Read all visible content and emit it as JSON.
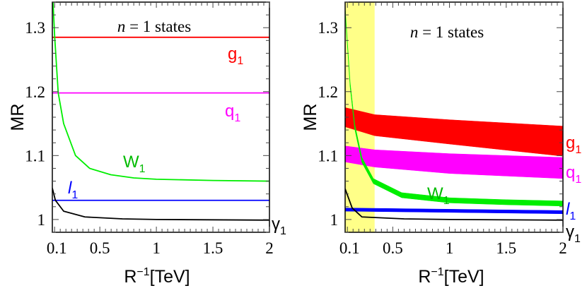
{
  "chart_data": [
    {
      "type": "line",
      "panel": "left",
      "annotation": {
        "italic": "n",
        "rest": " = 1 states"
      },
      "ylabel": "MR",
      "xlabel": {
        "main": "R",
        "sup": "−1",
        "rest": "[TeV]"
      },
      "xlim": [
        0.08,
        2
      ],
      "ylim": [
        0.98,
        1.34
      ],
      "xticks": [
        0.1,
        0.5,
        1,
        1.5,
        2
      ],
      "xtick_labels": [
        "0.1",
        "0.5",
        "1",
        "1.5",
        "2"
      ],
      "yticks": [
        1.0,
        1.1,
        1.2,
        1.3
      ],
      "ytick_labels": [
        "1",
        "1.1",
        "1.2",
        "1.3"
      ],
      "grid": false,
      "series": [
        {
          "name": "g1",
          "label": "g",
          "sub": "1",
          "color": "#ff0000",
          "x": [
            0.08,
            2
          ],
          "y": [
            1.285,
            1.285
          ]
        },
        {
          "name": "q1",
          "label": "q",
          "sub": "1",
          "color": "#ff00ff",
          "x": [
            0.08,
            2
          ],
          "y": [
            1.198,
            1.198
          ]
        },
        {
          "name": "W1",
          "label": "W",
          "sub": "1",
          "color": "#00ee00",
          "label_color": "#00bb00",
          "x": [
            0.086,
            0.101,
            0.132,
            0.18,
            0.285,
            0.41,
            0.597,
            0.8,
            1,
            1.5,
            2
          ],
          "y": [
            1.34,
            1.285,
            1.198,
            1.15,
            1.1,
            1.08,
            1.07,
            1.065,
            1.063,
            1.061,
            1.06
          ]
        },
        {
          "name": "l1",
          "label": "l",
          "sub": "1",
          "italic": true,
          "color": "#0000ff",
          "x": [
            0.08,
            2
          ],
          "y": [
            1.03,
            1.03
          ]
        },
        {
          "name": "γ1",
          "label": "γ",
          "sub": "1",
          "color": "#000000",
          "x": [
            0.08,
            0.107,
            0.18,
            0.368,
            0.7,
            1,
            2
          ],
          "y": [
            1.049,
            1.03,
            1.013,
            1.004,
            1.001,
            1.0,
            0.999
          ]
        }
      ]
    },
    {
      "type": "area",
      "panel": "right",
      "annotation": {
        "italic": "n",
        "rest": " = 1 states"
      },
      "ylabel": "MR",
      "xlabel": {
        "main": "R",
        "sup": "−1",
        "rest": "[TeV]"
      },
      "xlim": [
        0.08,
        2
      ],
      "ylim": [
        0.98,
        1.34
      ],
      "xticks": [
        0.1,
        0.5,
        1,
        1.5,
        2
      ],
      "xtick_labels": [
        "0.1",
        "0.5",
        "1",
        "1.5",
        "2"
      ],
      "yticks": [
        1.0,
        1.1,
        1.2,
        1.3
      ],
      "ytick_labels": [
        "1",
        "1.1",
        "1.2",
        "1.3"
      ],
      "grid": false,
      "shaded_region": {
        "x": [
          0.08,
          0.34
        ],
        "color": "#ffff88"
      },
      "bands": [
        {
          "name": "g1",
          "label": "g",
          "sub": "1",
          "color": "#ff0000",
          "x": [
            0.08,
            0.34,
            1,
            2
          ],
          "lo": [
            1.145,
            1.131,
            1.118,
            1.099
          ],
          "hi": [
            1.175,
            1.164,
            1.156,
            1.146
          ]
        },
        {
          "name": "q1",
          "label": "q",
          "sub": "1",
          "color": "#ff00ff",
          "x": [
            0.08,
            0.34,
            1,
            2
          ],
          "lo": [
            1.09,
            1.082,
            1.072,
            1.064
          ],
          "hi": [
            1.115,
            1.109,
            1.103,
            1.097
          ]
        },
        {
          "name": "W1",
          "label": "W",
          "sub": "1",
          "color": "#00ee00",
          "label_color": "#00bb00",
          "x": [
            0.082,
            0.124,
            0.165,
            0.228,
            0.329,
            0.579,
            1,
            1.5,
            2
          ],
          "lo": [
            1.319,
            1.207,
            1.141,
            1.089,
            1.056,
            1.034,
            1.026,
            1.023,
            1.021
          ],
          "hi": [
            1.327,
            1.215,
            1.149,
            1.097,
            1.064,
            1.042,
            1.034,
            1.031,
            1.029
          ]
        },
        {
          "name": "l1",
          "label": "l",
          "sub": "1",
          "italic": true,
          "color": "#0000ff",
          "x": [
            0.08,
            2
          ],
          "lo": [
            1.013,
            1.009
          ],
          "hi": [
            1.018,
            1.014
          ]
        }
      ],
      "series": [
        {
          "name": "γ1",
          "label": "γ",
          "sub": "1",
          "color": "#000000",
          "x": [
            0.08,
            0.142,
            0.228,
            0.6,
            1,
            2
          ],
          "y": [
            1.048,
            1.018,
            1.004,
            1.001,
            1.0,
            0.999
          ]
        }
      ]
    }
  ]
}
